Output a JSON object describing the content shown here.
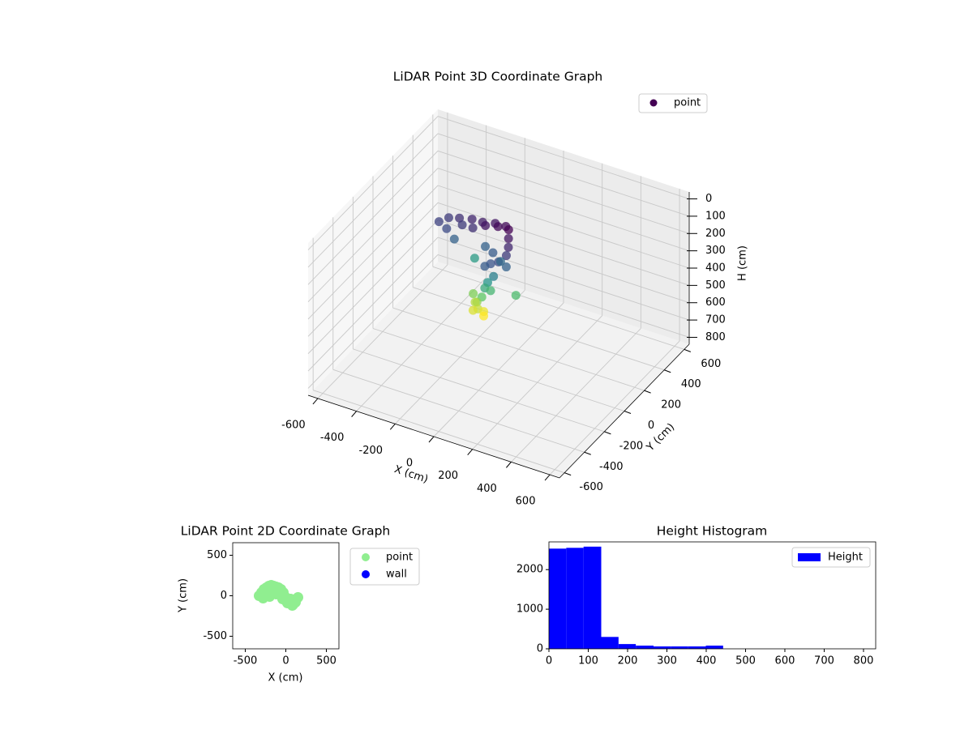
{
  "chart_data": [
    {
      "type": "scatter3d",
      "title": "LiDAR Point 3D Coordinate Graph",
      "x_label": "X (cm)",
      "y_label": "Y (cm)",
      "z_label": "H (cm)",
      "xlim": [
        -650,
        650
      ],
      "ylim": [
        -650,
        650
      ],
      "zlim": [
        840,
        -40
      ],
      "xticks": [
        -600,
        -400,
        -200,
        0,
        200,
        400,
        600
      ],
      "yticks": [
        -600,
        -400,
        -200,
        0,
        200,
        400,
        600
      ],
      "zticks": [
        0,
        100,
        200,
        300,
        400,
        500,
        600,
        700,
        800
      ],
      "grid": true,
      "legend": "upper right",
      "colormap": "viridis",
      "series": [
        {
          "name": "point",
          "x": [
            -350,
            -320,
            -300,
            -270,
            -240,
            -210,
            -180,
            -150,
            -120,
            -90,
            -60,
            -30,
            0,
            20,
            40,
            50,
            30,
            0,
            -20,
            60,
            10,
            -40,
            -100,
            -250,
            20,
            0,
            -10,
            10,
            120,
            -20,
            -40,
            -30,
            -10,
            -60,
            0,
            -50,
            -80,
            -150
          ],
          "y": [
            80,
            120,
            60,
            130,
            100,
            140,
            90,
            130,
            100,
            140,
            110,
            130,
            100,
            60,
            20,
            -20,
            -60,
            -80,
            -100,
            -40,
            0,
            20,
            60,
            40,
            -90,
            -110,
            -120,
            -100,
            -60,
            -130,
            -140,
            -150,
            -130,
            -120,
            -150,
            -160,
            -100,
            50
          ],
          "h": [
            160,
            150,
            170,
            140,
            150,
            130,
            140,
            120,
            110,
            110,
            100,
            100,
            90,
            110,
            130,
            150,
            170,
            180,
            190,
            200,
            210,
            190,
            200,
            200,
            240,
            270,
            300,
            320,
            330,
            350,
            380,
            410,
            430,
            400,
            440,
            420,
            370,
            280
          ]
        }
      ]
    },
    {
      "type": "scatter",
      "title": "LiDAR Point 2D Coordinate Graph",
      "x_label": "X (cm)",
      "y_label": "Y (cm)",
      "xlim": [
        -655,
        655
      ],
      "ylim": [
        -655,
        655
      ],
      "xticks": [
        -500,
        0,
        500
      ],
      "yticks": [
        -500,
        0,
        500
      ],
      "legend": "outside right",
      "series": [
        {
          "name": "point",
          "color": "#90ee90",
          "x": [
            -330,
            -300,
            -270,
            -240,
            -210,
            -180,
            -150,
            -120,
            -90,
            -60,
            -30,
            0,
            30,
            60,
            90,
            120,
            150,
            -280,
            -200,
            -120,
            -40,
            20,
            80,
            -250,
            -160,
            -60,
            0,
            60,
            120
          ],
          "y": [
            0,
            40,
            80,
            100,
            120,
            130,
            120,
            110,
            100,
            80,
            40,
            -20,
            -60,
            -100,
            -110,
            -80,
            -20,
            -30,
            -10,
            20,
            -40,
            -90,
            -120,
            60,
            80,
            60,
            -60,
            -40,
            -50
          ]
        },
        {
          "name": "wall",
          "color": "#0000ff",
          "x": [],
          "y": []
        }
      ]
    },
    {
      "type": "hist",
      "title": "Height Histogram",
      "bins": [
        0,
        44,
        88,
        133,
        177,
        221,
        266,
        310,
        354,
        399,
        443
      ],
      "counts": [
        2530,
        2550,
        2580,
        300,
        120,
        80,
        60,
        60,
        60,
        80
      ],
      "name": "Height",
      "color": "#0000ff",
      "xlim": [
        0,
        831
      ],
      "ylim": [
        0,
        2700
      ],
      "xticks": [
        0,
        100,
        200,
        300,
        400,
        500,
        600,
        700,
        800
      ],
      "yticks": [
        0,
        1000,
        2000
      ],
      "legend": "upper right"
    }
  ]
}
